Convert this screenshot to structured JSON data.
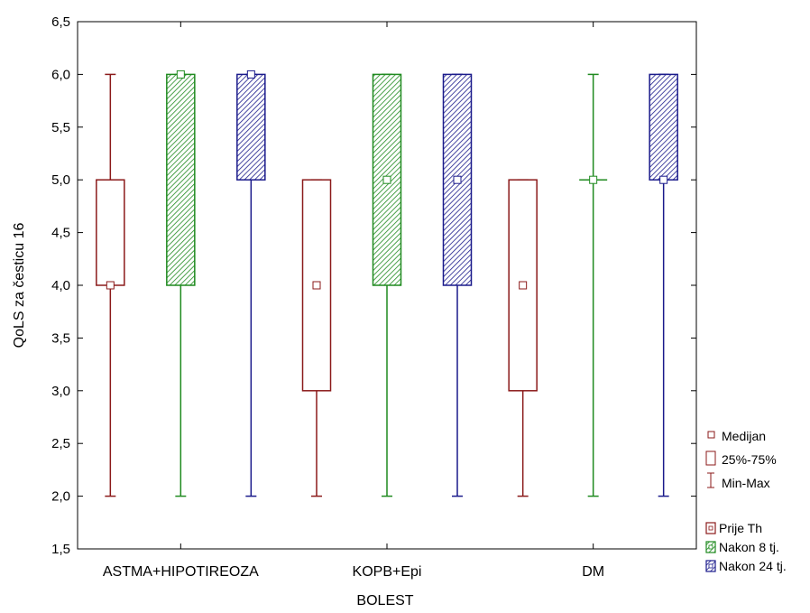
{
  "chart_data": {
    "type": "boxplot",
    "title": "",
    "xlabel": "BOLEST",
    "ylabel": "QoLS za česticu 16",
    "ylim": [
      1.5,
      6.5
    ],
    "yticks": [
      "1,5",
      "2,0",
      "2,5",
      "3,0",
      "3,5",
      "4,0",
      "4,5",
      "5,0",
      "5,5",
      "6,0",
      "6,5"
    ],
    "categories": [
      "ASTMA+HIPOTIREOZA",
      "KOPB+Epi",
      "DM"
    ],
    "series": [
      {
        "name": "Prije Th",
        "color": "#8b1a1a",
        "pattern": "none",
        "boxes": [
          {
            "min": 2,
            "q1": 4,
            "median": 4,
            "q3": 5,
            "max": 6
          },
          {
            "min": 2,
            "q1": 3,
            "median": 4,
            "q3": 5,
            "max": 5
          },
          {
            "min": 2,
            "q1": 3,
            "median": 4,
            "q3": 5,
            "max": 5
          }
        ]
      },
      {
        "name": "Nakon 8 tj.",
        "color": "#1f8a1f",
        "pattern": "hatch",
        "boxes": [
          {
            "min": 2,
            "q1": 4,
            "median": 6,
            "q3": 6,
            "max": 6
          },
          {
            "min": 2,
            "q1": 4,
            "median": 5,
            "q3": 6,
            "max": 6
          },
          {
            "min": 2,
            "q1": 5,
            "median": 5,
            "q3": 5,
            "max": 6
          }
        ]
      },
      {
        "name": "Nakon 24 tj.",
        "color": "#1a1a8b",
        "pattern": "hatch",
        "boxes": [
          {
            "min": 2,
            "q1": 5,
            "median": 6,
            "q3": 6,
            "max": 6
          },
          {
            "min": 2,
            "q1": 4,
            "median": 5,
            "q3": 6,
            "max": 6
          },
          {
            "min": 2,
            "q1": 5,
            "median": 5,
            "q3": 6,
            "max": 6
          }
        ]
      }
    ],
    "legend": {
      "placement": "right",
      "key_items": [
        "Medijan",
        "25%-75%",
        "Min-Max"
      ],
      "key_color": "#8b1a1a"
    }
  }
}
